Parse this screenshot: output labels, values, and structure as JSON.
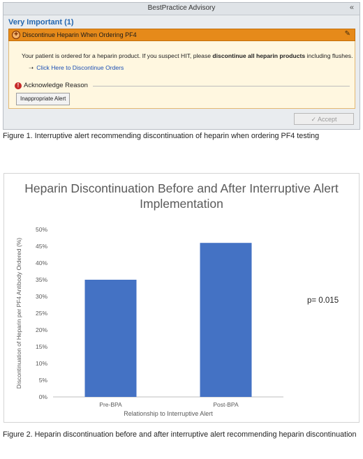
{
  "figure1": {
    "window_title": "BestPractice Advisory",
    "section_title": "Very Important (1)",
    "alert_title": "Discontinue Heparin When Ordering PF4",
    "message_pre": "Your patient is ordered for a heparin product. If you suspect HIT, please ",
    "message_bold": "discontinue all heparin products",
    "message_post": " including flushes.",
    "link_text": "Click Here to Discontinue Orders",
    "acknowledge_label": "Acknowledge Reason",
    "reason_button": "Inappropriate Alert",
    "accept_button": "Accept",
    "caption": "Figure 1. Interruptive alert recommending discontinuation of heparin when ordering PF4 testing",
    "colors": {
      "alert_header": "#e68a1a",
      "alert_body": "#fff7e0",
      "section_title": "#2467b0",
      "link": "#1b4fb5"
    }
  },
  "figure2": {
    "caption": "Figure 2. Heparin discontinuation before and after interruptive alert recommending heparin discontinuation",
    "annotation": "p= 0.015"
  },
  "chart_data": {
    "type": "bar",
    "title": "Heparin Discontinuation Before and After Interruptive Alert Implementation",
    "categories": [
      "Pre-BPA",
      "Post-BPA"
    ],
    "values": [
      35,
      46
    ],
    "xlabel": "Relationship to Interruptive Alert",
    "ylabel": "Discontinuation of Heparin per PF4 Antibody Ordered (%)",
    "ylim": [
      0,
      50
    ],
    "yticks": [
      0,
      5,
      10,
      15,
      20,
      25,
      30,
      35,
      40,
      45,
      50
    ],
    "ytick_suffix": "%",
    "grid": false,
    "bar_color": "#4472c4"
  }
}
